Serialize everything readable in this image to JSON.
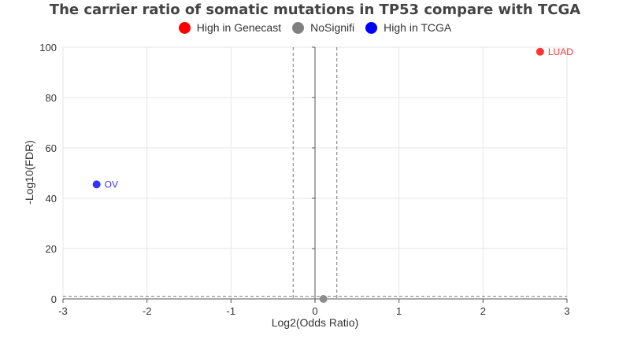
{
  "chart_data": {
    "type": "scatter",
    "title": "The carrier ratio of somatic mutations in TP53 compare with TCGA",
    "xlabel": "Log2(Odds Ratio)",
    "ylabel": "-Log10(FDR)",
    "xlim": [
      -3,
      3
    ],
    "ylim": [
      0,
      100
    ],
    "xticks": [
      "-3",
      "-2",
      "-1",
      "0",
      "1",
      "2",
      "3"
    ],
    "yticks": [
      "0",
      "20",
      "40",
      "60",
      "80",
      "100"
    ],
    "grid": true,
    "legend_position": "top-center",
    "legend": [
      {
        "name": "High in Genecast",
        "color": "#ff0000"
      },
      {
        "name": "NoSignifi",
        "color": "#808080"
      },
      {
        "name": "High in TCGA",
        "color": "#0000ff"
      }
    ],
    "thresholds": {
      "x": [
        -0.26,
        0.26
      ],
      "y": 1
    },
    "series": [
      {
        "name": "High in Genecast",
        "color": "#ff3333",
        "points": [
          {
            "x": 2.68,
            "y": 98.2,
            "label": "LUAD"
          }
        ]
      },
      {
        "name": "NoSignifi",
        "color": "#8c8c8c",
        "points": [
          {
            "x": 0.1,
            "y": 0,
            "label": ""
          }
        ]
      },
      {
        "name": "High in TCGA",
        "color": "#3333ff",
        "points": [
          {
            "x": -2.6,
            "y": 45.5,
            "label": "OV"
          }
        ]
      }
    ]
  }
}
